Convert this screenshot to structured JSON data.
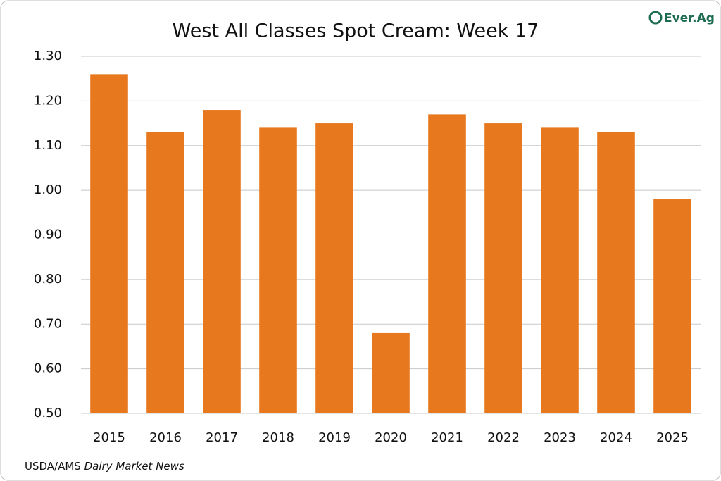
{
  "chart_data": {
    "type": "bar",
    "title": "West All Classes Spot Cream: Week 17",
    "categories": [
      "2015",
      "2016",
      "2017",
      "2018",
      "2019",
      "2020",
      "2021",
      "2022",
      "2023",
      "2024",
      "2025"
    ],
    "values": [
      1.26,
      1.13,
      1.18,
      1.14,
      1.15,
      0.68,
      1.17,
      1.15,
      1.14,
      1.13,
      0.98
    ],
    "color": "#e8781e",
    "ylim": [
      0.5,
      1.3
    ],
    "yticks": [
      {
        "value": 0.5,
        "label": "0.50"
      },
      {
        "value": 0.6,
        "label": "0.60"
      },
      {
        "value": 0.7,
        "label": "0.70"
      },
      {
        "value": 0.8,
        "label": "0.80"
      },
      {
        "value": 0.9,
        "label": "0.90"
      },
      {
        "value": 1.0,
        "label": "1.00"
      },
      {
        "value": 1.1,
        "label": "1.10"
      },
      {
        "value": 1.2,
        "label": "1.20"
      },
      {
        "value": 1.3,
        "label": "1.30"
      }
    ],
    "grid": true,
    "source": "USDA/AMS",
    "source_publication": "Dairy Market News",
    "logo": "Ever.Ag"
  }
}
